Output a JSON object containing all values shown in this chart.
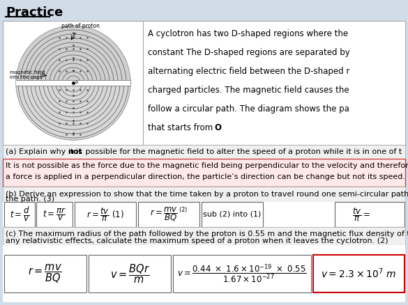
{
  "title": "Practice",
  "bg_color": "#d0dce8",
  "white": "#ffffff",
  "light_grey": "#f2f2f2",
  "pink_bg": "#ffe8e8",
  "pink_border": "#cc4444",
  "red_border": "#cc0000",
  "dark_grey": "#555555",
  "mid_grey": "#888888",
  "cyclotron_lines": [
    "A cyclotron has two D-shaped regions where the",
    "constant The D-shaped regions are separated by",
    "alternating electric field between the D-shaped r",
    "charged particles. The magnetic field causes the",
    "follow a circular path. The diagram shows the pa",
    "that starts from "
  ],
  "qa_text1": "(a) Explain why it is ",
  "qa_bold": "not",
  "qa_text2": " possible for the magnetic field to alter the speed of a proton while it is in one of t",
  "ans_line1": "It is not possible as the force due to the magnetic field being perpendicular to the velocity and therefore",
  "ans_line2": "a force is applied in a perpendicular direction, the particle’s direction can be change but not its speed.",
  "qb_line1": "(b) Derive an expression to show that the time taken by a proton to travel round one semi-circular path i",
  "qb_line2": "the path. (3)",
  "qc_line1": "(c) The maximum radius of the path followed by the proton is 0.55 m and the magnetic flux density of the",
  "qc_line2": "any relativistic effects, calculate the maximum speed of a proton when it leaves the cyclotron. (2)"
}
